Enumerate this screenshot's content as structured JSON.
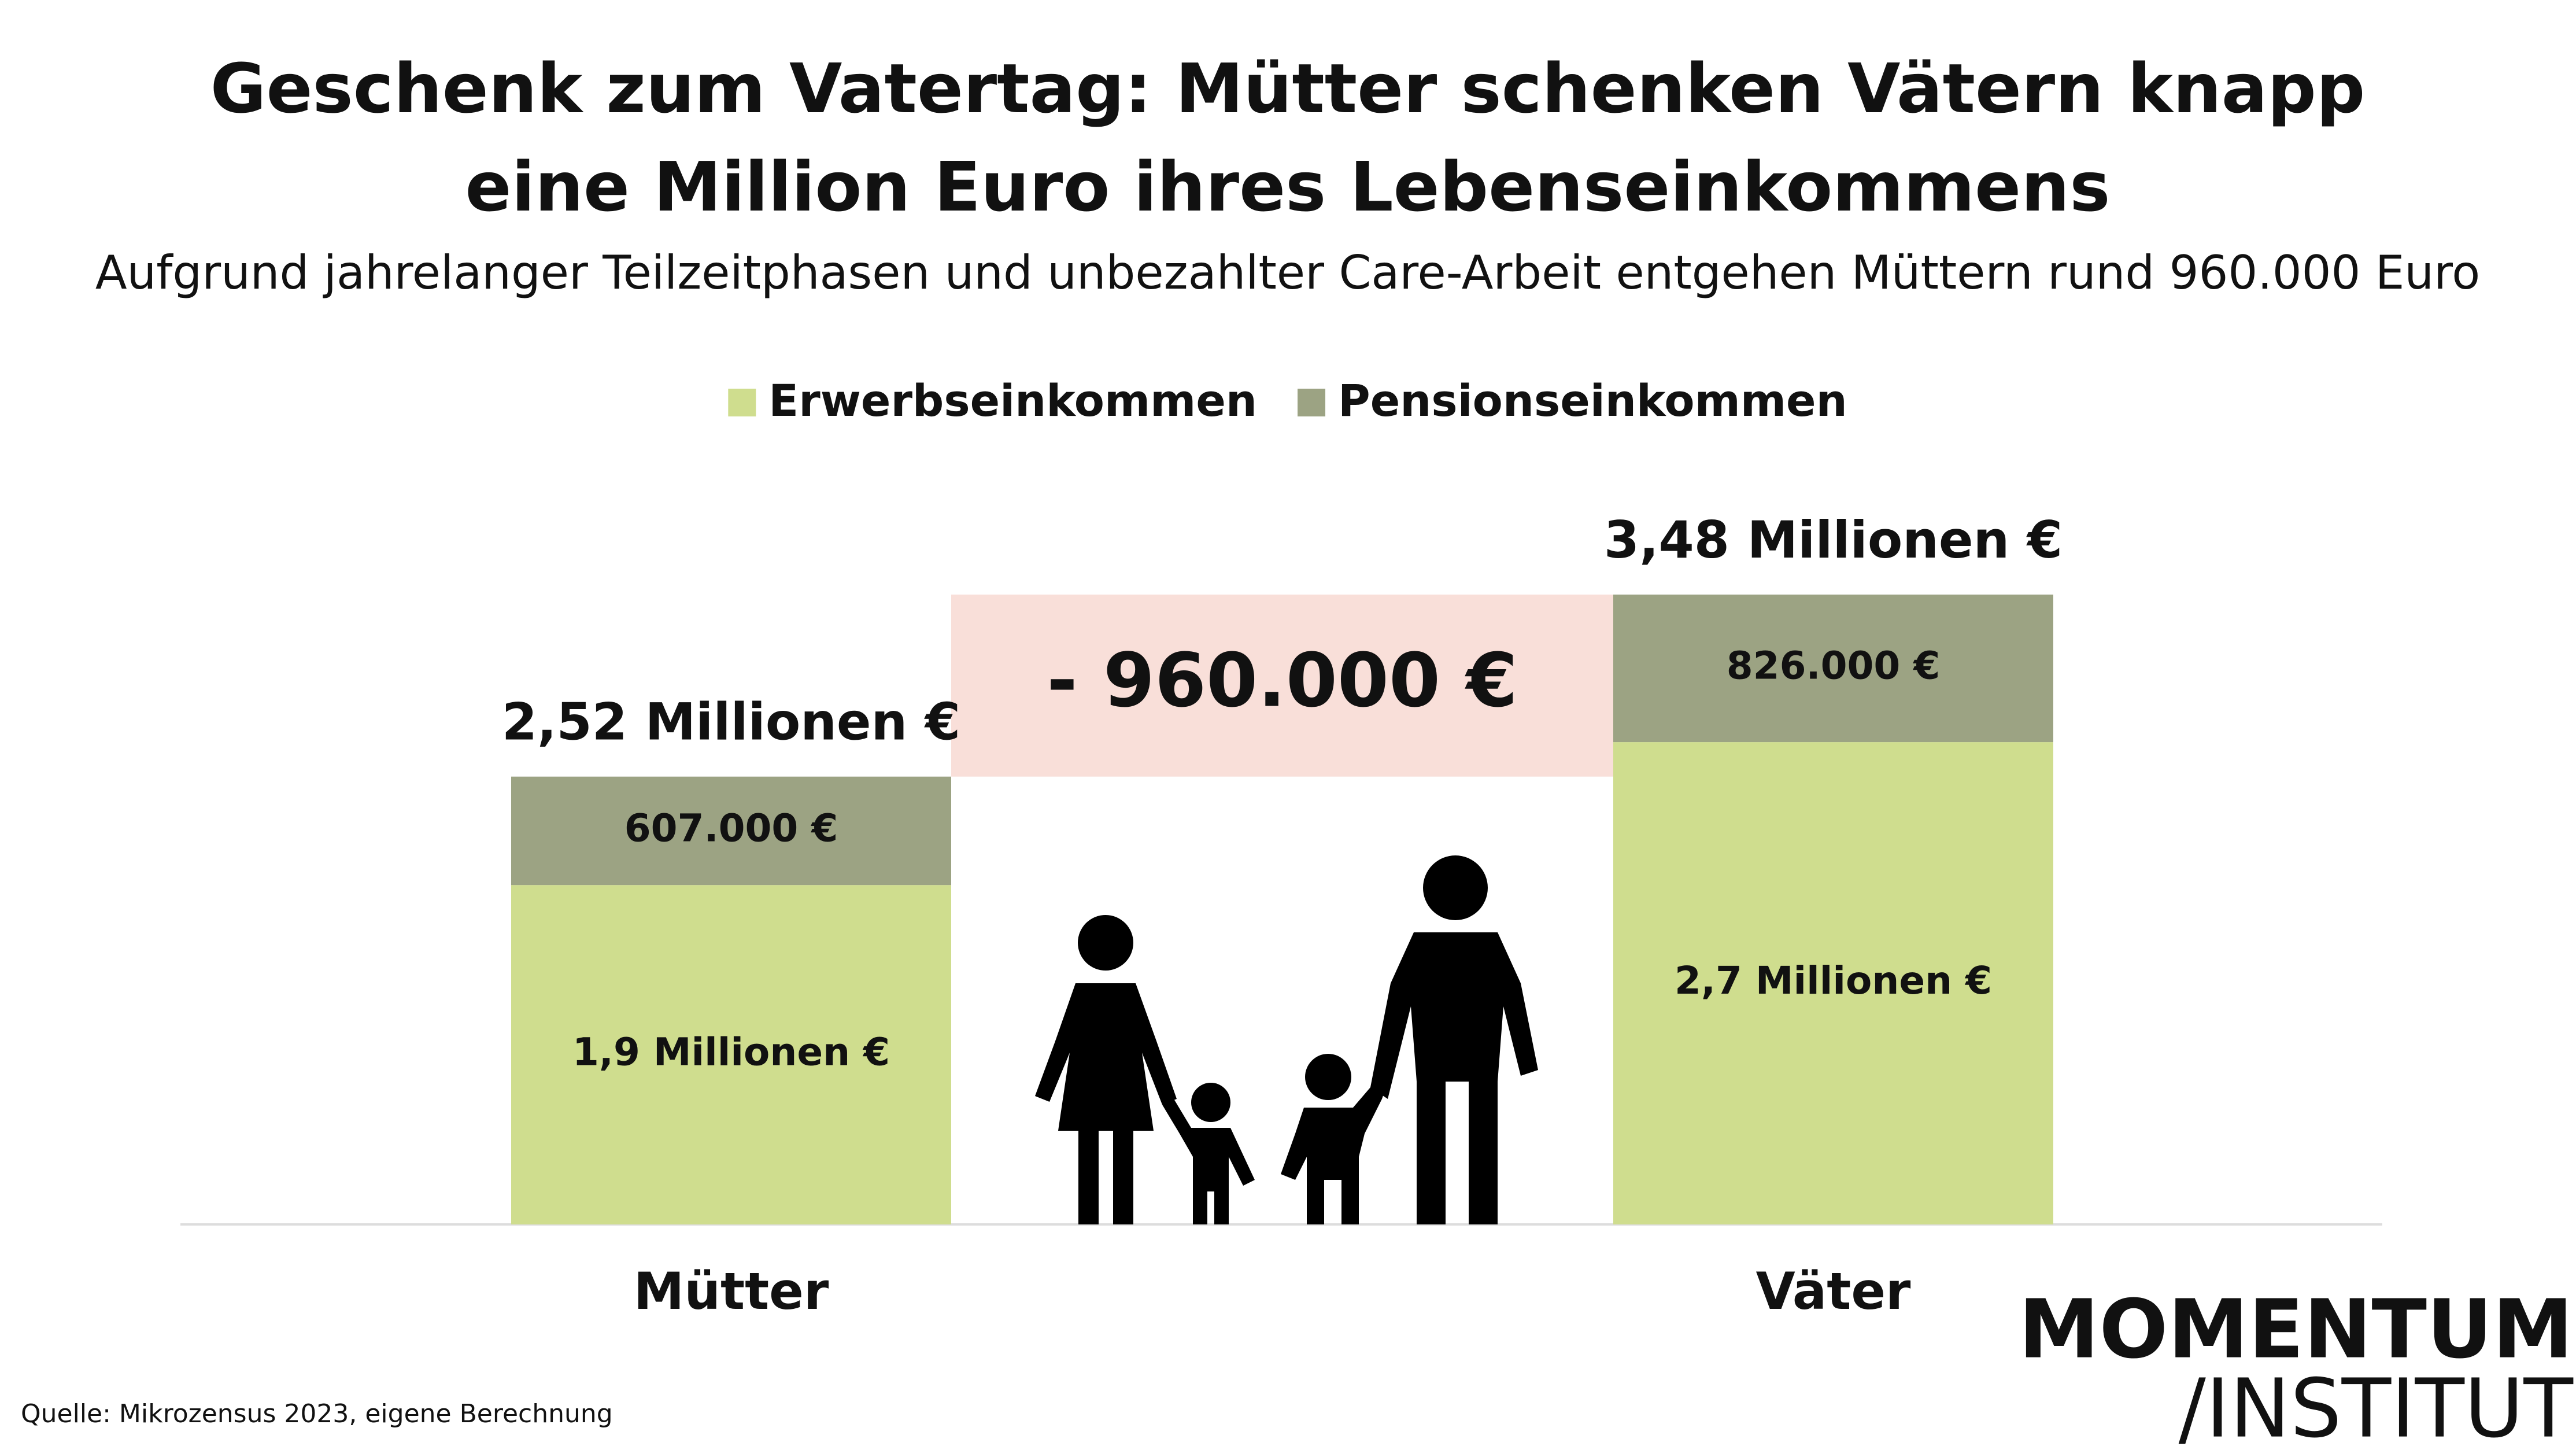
{
  "chart_data": {
    "type": "stacked-bar",
    "title": [
      "Geschenk zum Vatertag: Mütter schenken Vätern knapp",
      "eine Million Euro ihres Lebenseinkommens"
    ],
    "subtitle": "Aufgrund jahrelanger Teilzeitphasen und unbezahlter Care-Arbeit entgehen Müttern  rund 960.000 Euro",
    "categories": [
      "Mütter",
      "Väter"
    ],
    "series": [
      {
        "name": "Erwerbseinkommen",
        "color": "#cfdd8e",
        "values": [
          1900000,
          2700000
        ],
        "value_labels": [
          "1,9 Millionen €",
          "2,7 Millionen €"
        ]
      },
      {
        "name": "Pensionseinkommen",
        "color": "#9ca383",
        "values": [
          607000,
          826000
        ],
        "value_labels": [
          "607.000 €",
          "826.000 €"
        ]
      }
    ],
    "total_labels": [
      "2,52 Millionen €",
      "3,48 Millionen €"
    ],
    "difference_label": "- 960.000 €",
    "difference_color": "#f9dfd9",
    "source": "Quelle: Mikrozensus 2023, eigene Berechnung",
    "logo": [
      "MOMENTUM",
      "/INSTITUT"
    ]
  }
}
